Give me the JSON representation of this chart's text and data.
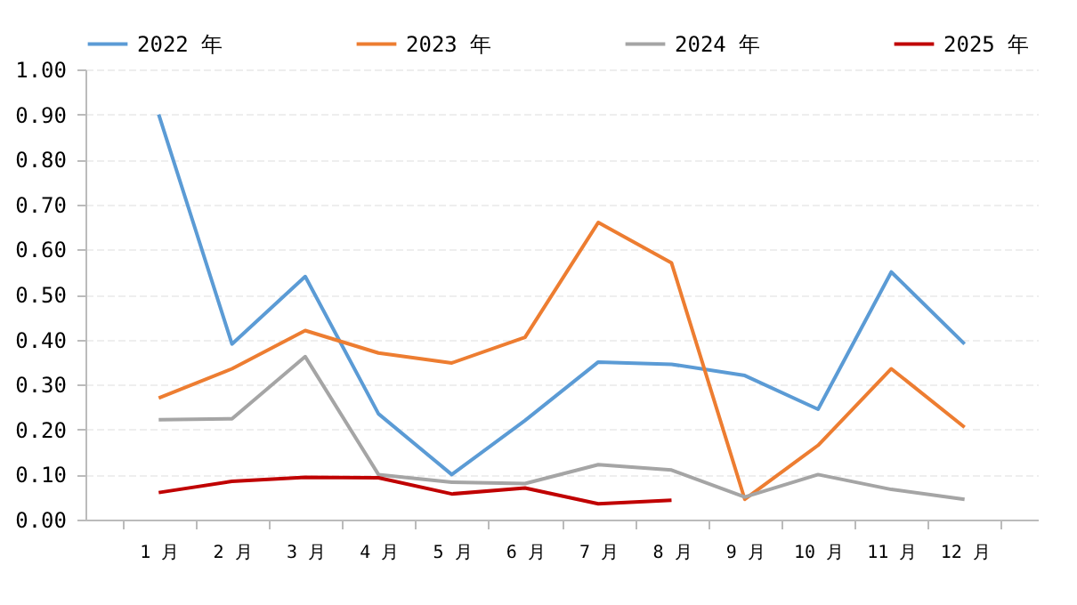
{
  "chart_data": {
    "type": "line",
    "categories": [
      "1 月",
      "2 月",
      "3 月",
      "4 月",
      "5 月",
      "6 月",
      "7 月",
      "8 月",
      "9 月",
      "10 月",
      "11 月",
      "12 月"
    ],
    "series": [
      {
        "name": "2022 年",
        "color": "#5b9bd5",
        "values": [
          0.9,
          0.39,
          0.54,
          0.235,
          0.1,
          0.22,
          0.35,
          0.345,
          0.32,
          0.245,
          0.55,
          0.39
        ]
      },
      {
        "name": "2023 年",
        "color": "#ed7d31",
        "values": [
          0.27,
          0.335,
          0.42,
          0.37,
          0.348,
          0.405,
          0.66,
          0.57,
          0.045,
          0.165,
          0.335,
          0.205
        ]
      },
      {
        "name": "2024 年",
        "color": "#a5a5a5",
        "values": [
          0.222,
          0.224,
          0.362,
          0.1,
          0.083,
          0.08,
          0.122,
          0.11,
          0.05,
          0.1,
          0.067,
          0.045
        ]
      },
      {
        "name": "2025 年",
        "color": "#c00000",
        "values": [
          0.06,
          0.085,
          0.094,
          0.093,
          0.057,
          0.07,
          0.035,
          0.043,
          null,
          null,
          null,
          null
        ]
      }
    ],
    "ylim": [
      0,
      1
    ],
    "yticks": [
      {
        "value": 0,
        "label": "0.00"
      },
      {
        "value": 0.1,
        "label": "0.10"
      },
      {
        "value": 0.2,
        "label": "0.20"
      },
      {
        "value": 0.3,
        "label": "0.30"
      },
      {
        "value": 0.4,
        "label": "0.40"
      },
      {
        "value": 0.5,
        "label": "0.50"
      },
      {
        "value": 0.6,
        "label": "0.60"
      },
      {
        "value": 0.7,
        "label": "0.70"
      },
      {
        "value": 0.8,
        "label": "0.80"
      },
      {
        "value": 0.9,
        "label": "0.90"
      },
      {
        "value": 1,
        "label": "1.00"
      }
    ],
    "grid": "y",
    "legend": "top",
    "marker": "none",
    "line_style": "solid"
  }
}
